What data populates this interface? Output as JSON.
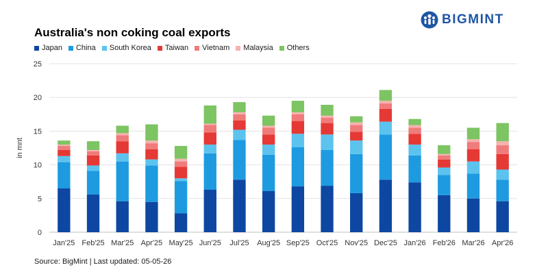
{
  "brand": {
    "name": "BIGMINT",
    "logo_icon": "people-group-icon",
    "color": "#1f56a5"
  },
  "source": "Source: BigMint | Last updated: 05-05-26",
  "chart_data": {
    "type": "bar",
    "stacked": true,
    "title": "Australia's non coking coal exports",
    "xlabel": "",
    "ylabel": "in mnt",
    "ylim": [
      0,
      25
    ],
    "yticks": [
      0,
      5,
      10,
      15,
      20,
      25
    ],
    "grid": true,
    "legend_position": "top-left",
    "categories": [
      "Jan'25",
      "Feb'25",
      "Mar'25",
      "Apr'25",
      "May'25",
      "Jun'25",
      "Jul'25",
      "Aug'25",
      "Sep'25",
      "Oct'25",
      "Nov'25",
      "Dec'25",
      "Jan'26",
      "Feb'26",
      "Mar'26",
      "Apr'26"
    ],
    "series": [
      {
        "name": "Japan",
        "color": "#0d47a1",
        "values": [
          6.5,
          5.6,
          4.6,
          4.5,
          2.8,
          6.3,
          7.8,
          6.1,
          6.8,
          6.9,
          5.8,
          7.8,
          7.4,
          5.5,
          5.0,
          4.6
        ]
      },
      {
        "name": "China",
        "color": "#1e9be0",
        "values": [
          3.9,
          3.5,
          5.9,
          5.4,
          4.8,
          5.4,
          5.9,
          5.4,
          5.8,
          5.3,
          5.8,
          6.7,
          4.0,
          3.0,
          3.7,
          3.2
        ]
      },
      {
        "name": "South Korea",
        "color": "#5cc3ef",
        "values": [
          0.9,
          0.8,
          1.2,
          0.9,
          0.4,
          1.3,
          1.5,
          1.5,
          2.0,
          2.3,
          2.0,
          1.9,
          1.6,
          1.1,
          1.8,
          1.5
        ]
      },
      {
        "name": "Taiwan",
        "color": "#e53935",
        "values": [
          0.9,
          1.5,
          1.8,
          1.5,
          1.7,
          1.8,
          1.4,
          1.5,
          1.9,
          1.7,
          1.3,
          1.9,
          1.6,
          1.2,
          1.8,
          2.3
        ]
      },
      {
        "name": "Vietnam",
        "color": "#f07b7b",
        "values": [
          0.6,
          0.6,
          0.9,
          0.9,
          0.8,
          1.1,
          0.9,
          1.0,
          1.0,
          0.8,
          1.0,
          0.8,
          0.9,
          0.6,
          1.1,
          1.3
        ]
      },
      {
        "name": "Malaysia",
        "color": "#f5b3b0",
        "values": [
          0.2,
          0.2,
          0.3,
          0.4,
          0.4,
          0.2,
          0.3,
          0.3,
          0.3,
          0.3,
          0.4,
          0.4,
          0.4,
          0.2,
          0.4,
          0.6
        ]
      },
      {
        "name": "Others",
        "color": "#7dc462",
        "values": [
          0.6,
          1.3,
          1.1,
          2.4,
          1.9,
          2.7,
          1.5,
          1.5,
          1.7,
          1.6,
          0.9,
          1.6,
          0.9,
          1.3,
          1.7,
          2.7
        ]
      }
    ]
  }
}
